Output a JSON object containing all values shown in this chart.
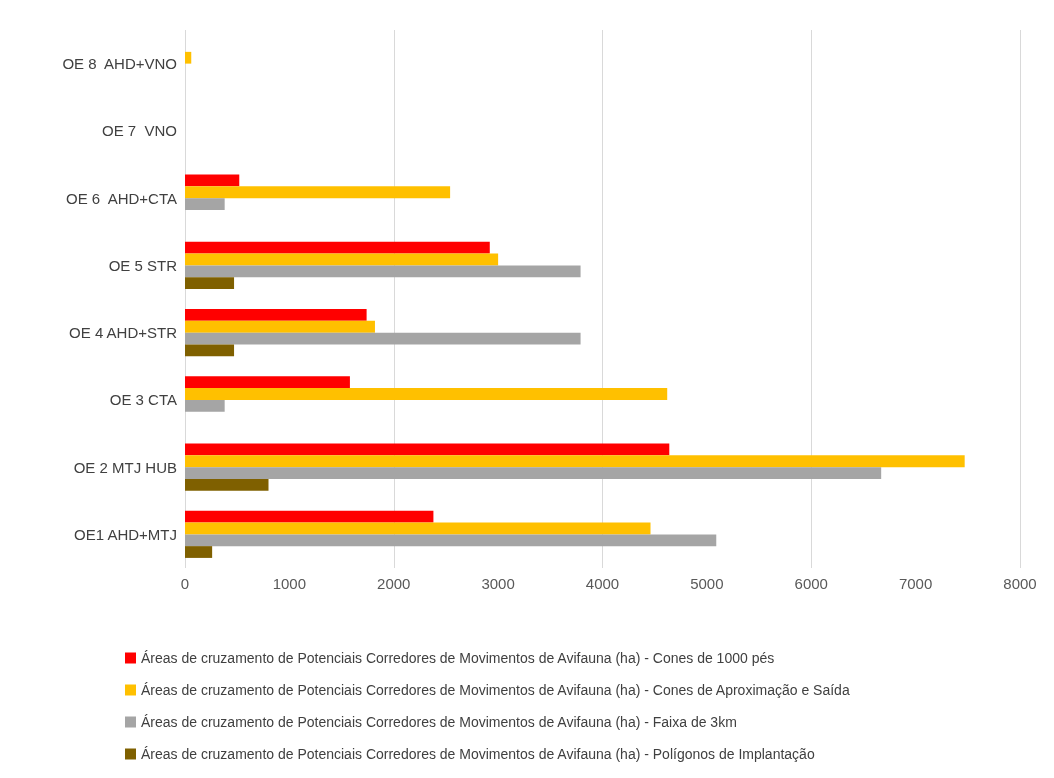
{
  "chart_data": {
    "type": "bar",
    "orientation": "horizontal",
    "categories": [
      "OE 8  AHD+VNO",
      "OE 7  VNO",
      "OE 6  AHD+CTA",
      "OE 5 STR",
      "OE 4 AHD+STR",
      "OE 3 CTA",
      "OE 2 MTJ HUB",
      "OE1 AHD+MTJ"
    ],
    "series": [
      {
        "name": "Áreas de cruzamento de Potenciais Corredores de Movimentos de Avifauna (ha) - Cones de 1000 pés",
        "color": "#ff0000",
        "values": [
          null,
          null,
          520,
          2920,
          1740,
          1580,
          4640,
          2380
        ]
      },
      {
        "name": "Áreas de cruzamento de Potenciais Corredores de Movimentos de Avifauna (ha) - Cones de Aproximação e Saída",
        "color": "#ffc000",
        "values": [
          60,
          null,
          2540,
          3000,
          1820,
          4620,
          7470,
          4460
        ]
      },
      {
        "name": "Áreas de cruzamento de Potenciais Corredores de Movimentos de Avifauna (ha) - Faixa de 3km",
        "color": "#a5a5a5",
        "values": [
          null,
          null,
          380,
          3790,
          3790,
          380,
          6670,
          5090
        ]
      },
      {
        "name": "Áreas de cruzamento de Potenciais Corredores de Movimentos de Avifauna (ha) - Polígonos de Implantação",
        "color": "#7f6000",
        "values": [
          null,
          null,
          null,
          470,
          470,
          null,
          800,
          260
        ]
      }
    ],
    "xlim": [
      0,
      8000
    ],
    "xticks": [
      0,
      1000,
      2000,
      3000,
      4000,
      5000,
      6000,
      7000,
      8000
    ],
    "grid": "x",
    "legend": "bottom"
  }
}
